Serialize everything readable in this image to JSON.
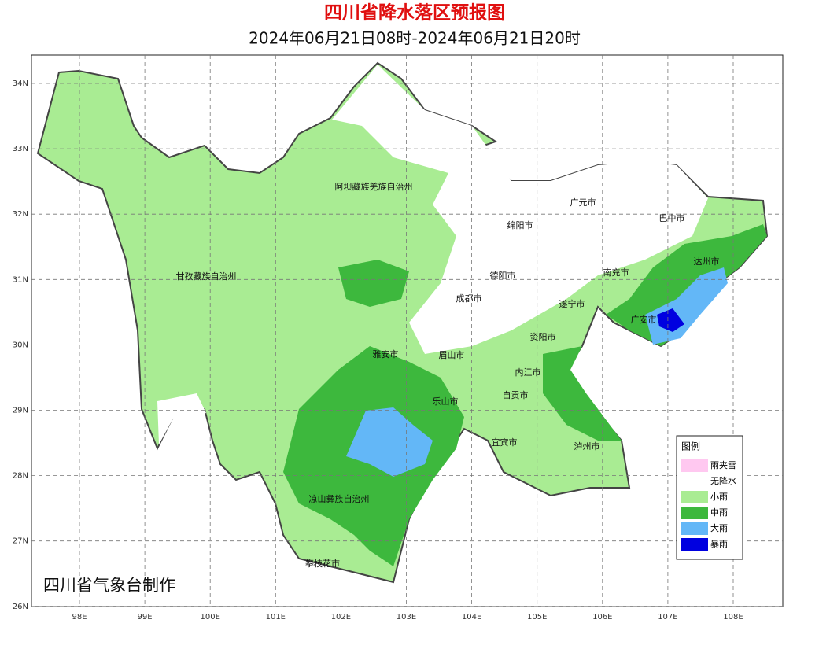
{
  "header": {
    "title": "四川省降水落区预报图",
    "subtitle": "2024年06月21日08时-2024年06月21日20时"
  },
  "map": {
    "lat_ticks": [
      {
        "value": 34,
        "label": "34N"
      },
      {
        "value": 33,
        "label": "33N"
      },
      {
        "value": 32,
        "label": "32N"
      },
      {
        "value": 31,
        "label": "31N"
      },
      {
        "value": 30,
        "label": "30N"
      },
      {
        "value": 29,
        "label": "29N"
      },
      {
        "value": 28,
        "label": "28N"
      },
      {
        "value": 27,
        "label": "27N"
      },
      {
        "value": 26,
        "label": "26N"
      }
    ],
    "lon_ticks": [
      {
        "value": 98,
        "label": "98E"
      },
      {
        "value": 99,
        "label": "99E"
      },
      {
        "value": 100,
        "label": "100E"
      },
      {
        "value": 101,
        "label": "101E"
      },
      {
        "value": 102,
        "label": "102E"
      },
      {
        "value": 103,
        "label": "103E"
      },
      {
        "value": 104,
        "label": "104E"
      },
      {
        "value": 105,
        "label": "105E"
      },
      {
        "value": 106,
        "label": "106E"
      },
      {
        "value": 107,
        "label": "107E"
      },
      {
        "value": 108,
        "label": "108E"
      }
    ],
    "regions": [
      "阿坝藏族羌族自治州",
      "广元市",
      "巴中市",
      "绵阳市",
      "甘孜藏族自治州",
      "德阳市",
      "南充市",
      "达州市",
      "成都市",
      "遂宁市",
      "广安市",
      "资阳市",
      "雅安市",
      "眉山市",
      "内江市",
      "乐山市",
      "自贡市",
      "宜宾市",
      "泸州市",
      "凉山彝族自治州",
      "攀枝花市"
    ],
    "credit": "四川省气象台制作"
  },
  "legend": {
    "title": "图例",
    "items": [
      {
        "name": "雨夹雪",
        "color": "#ffc8f0"
      },
      {
        "name": "无降水",
        "color": "#ffffff"
      },
      {
        "name": "小雨",
        "color": "#a9ec93"
      },
      {
        "name": "中雨",
        "color": "#3db83d"
      },
      {
        "name": "大雨",
        "color": "#63b7f7"
      },
      {
        "name": "暴雨",
        "color": "#0000e0"
      }
    ]
  }
}
